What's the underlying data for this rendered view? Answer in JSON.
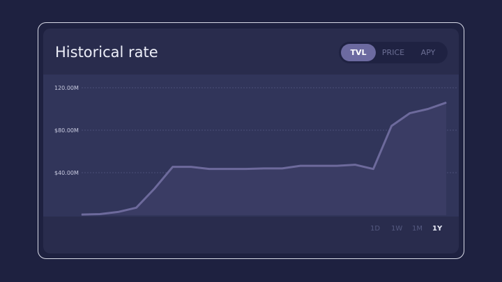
{
  "title": "Historical rate",
  "tabs": [
    {
      "label": "TVL",
      "active": true
    },
    {
      "label": "PRICE",
      "active": false
    },
    {
      "label": "APY",
      "active": false
    }
  ],
  "ranges": [
    {
      "label": "1D",
      "active": false
    },
    {
      "label": "1W",
      "active": false
    },
    {
      "label": "1M",
      "active": false
    },
    {
      "label": "1Y",
      "active": true
    }
  ],
  "chart_data": {
    "type": "area",
    "ylim": [
      0,
      120
    ],
    "yticks": [
      {
        "value": 40,
        "label": "$40.00M"
      },
      {
        "value": 80,
        "label": "$80.00M"
      },
      {
        "value": 120,
        "label": "120.00M"
      }
    ],
    "grid": true,
    "values": [
      0.6,
      1,
      3,
      7,
      25,
      45.5,
      45.5,
      43.5,
      43.5,
      43.5,
      44,
      44,
      46.5,
      46.5,
      46.5,
      47.5,
      43.5,
      84,
      96,
      100,
      106
    ],
    "colors": {
      "line": "#6d6a9c",
      "fill": "#3a3c64"
    }
  }
}
